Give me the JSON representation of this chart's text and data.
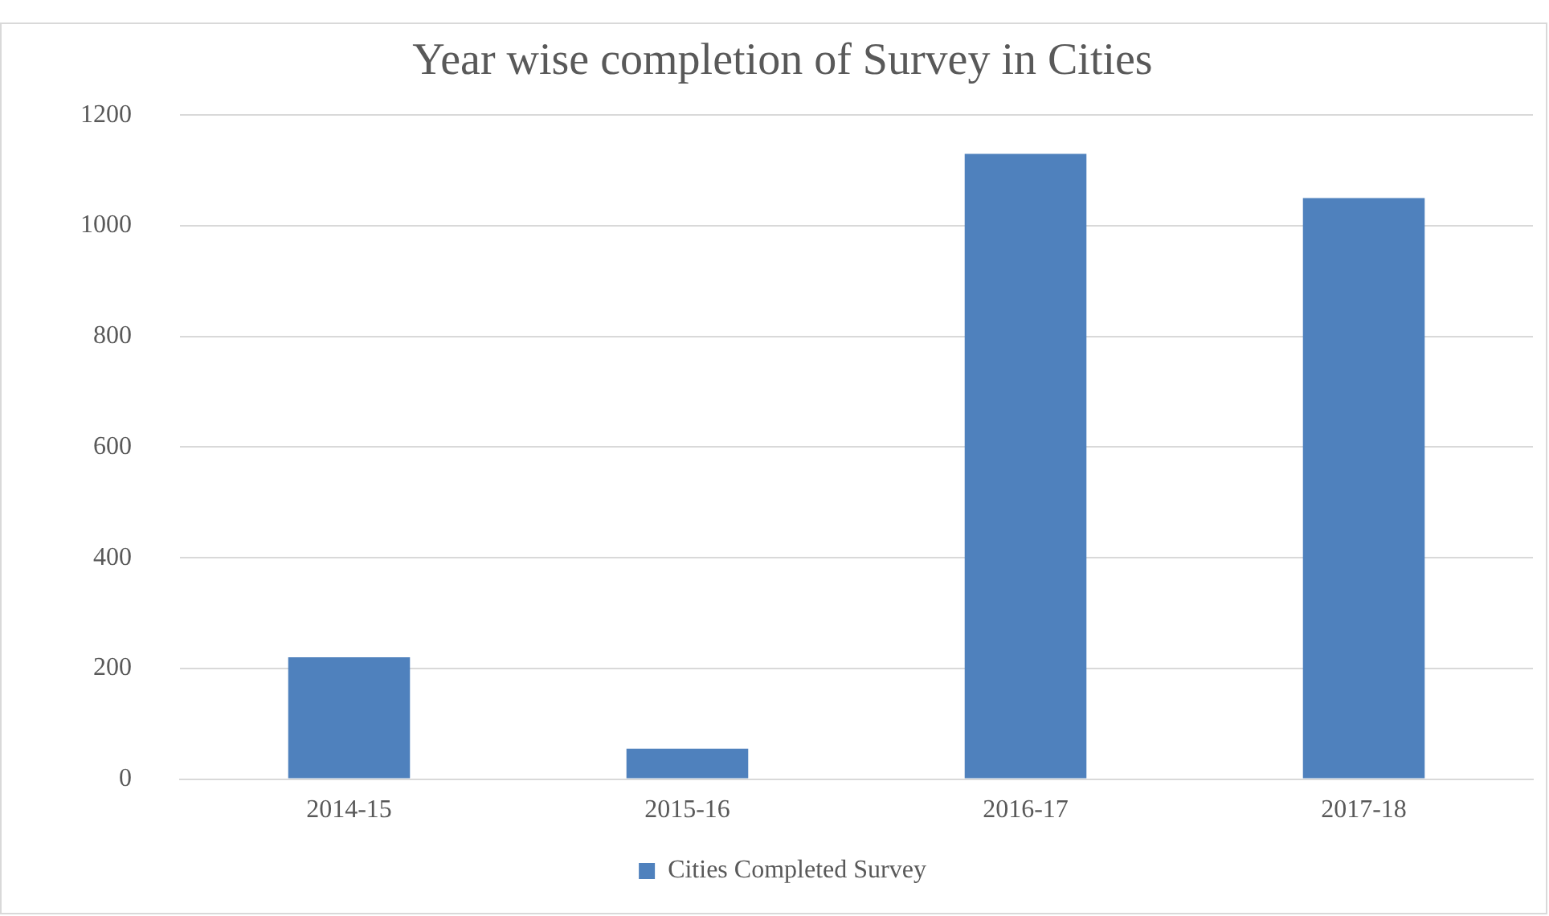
{
  "chart_data": {
    "type": "bar",
    "title": "Year wise completion of Survey in Cities",
    "categories": [
      "2014-15",
      "2015-16",
      "2016-17",
      "2017-18"
    ],
    "series": [
      {
        "name": "Cities Completed Survey",
        "color": "#4f81bd",
        "values": [
          220,
          55,
          1130,
          1050
        ]
      }
    ],
    "ylim": [
      0,
      1200
    ],
    "yticks": [
      0,
      200,
      400,
      600,
      800,
      1000,
      1200
    ],
    "grid": "y",
    "legend": "bottom"
  }
}
